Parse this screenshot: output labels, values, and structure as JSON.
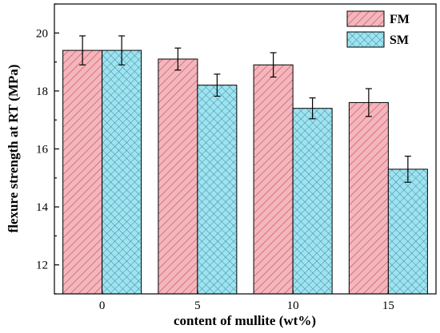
{
  "chart_data": {
    "type": "bar",
    "xlabel": "content of mullite (wt%)",
    "ylabel": "flexure strength at RT (MPa)",
    "categories": [
      "0",
      "5",
      "10",
      "15"
    ],
    "ylim": [
      11,
      21
    ],
    "yticks": [
      12,
      14,
      16,
      18,
      20
    ],
    "grid": false,
    "legend_position": "top-right",
    "series": [
      {
        "name": "FM",
        "values": [
          19.4,
          19.1,
          18.9,
          17.6
        ],
        "errors": [
          0.5,
          0.38,
          0.42,
          0.48
        ],
        "color": "#f3b6bc",
        "hatch_color": "#c8505e",
        "hatch": "diagonal"
      },
      {
        "name": "SM",
        "values": [
          19.4,
          18.2,
          17.4,
          15.3
        ],
        "errors": [
          0.5,
          0.38,
          0.36,
          0.45
        ],
        "color": "#9fe3ef",
        "hatch_color": "#3a8aa6",
        "hatch": "crosshatch"
      }
    ]
  }
}
